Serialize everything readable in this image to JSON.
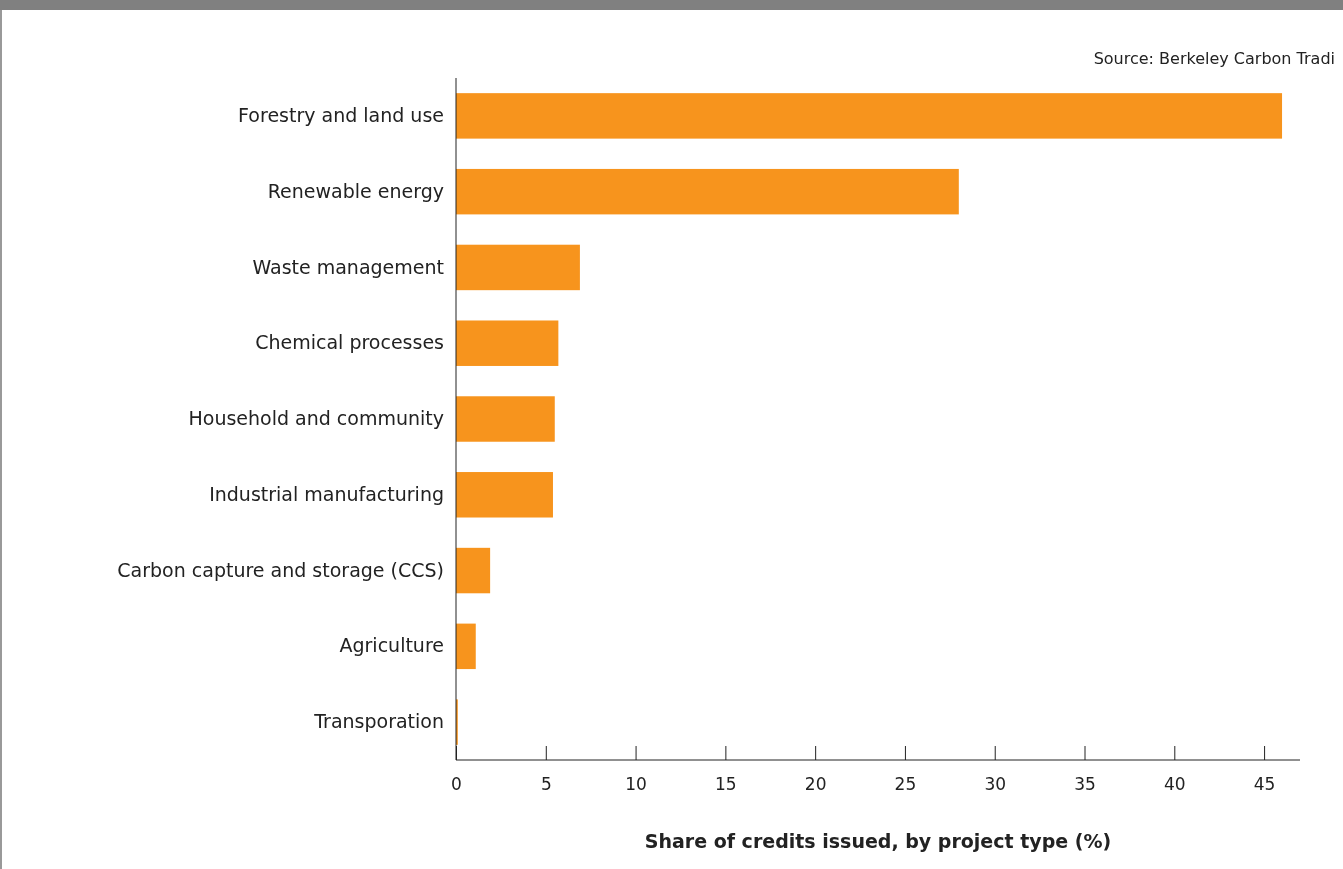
{
  "chart_data": {
    "type": "bar",
    "orientation": "horizontal",
    "categories": [
      "Forestry and land use",
      "Renewable energy",
      "Waste management",
      "Chemical processes",
      "Household and community",
      "Industrial manufacturing",
      "Carbon capture and storage (CCS)",
      "Agriculture",
      "Transporation"
    ],
    "values": [
      46,
      28,
      6.9,
      5.7,
      5.5,
      5.4,
      1.9,
      1.1,
      0.1
    ],
    "color": "#f7941d",
    "xlim": [
      0,
      47
    ],
    "xticks": [
      0,
      5,
      10,
      15,
      20,
      25,
      30,
      35,
      40,
      45
    ],
    "xlabel": "Share of credits issued, by project type (%)",
    "annotations": [
      "Source: Berkeley Carbon Tradi"
    ],
    "grid": false
  }
}
